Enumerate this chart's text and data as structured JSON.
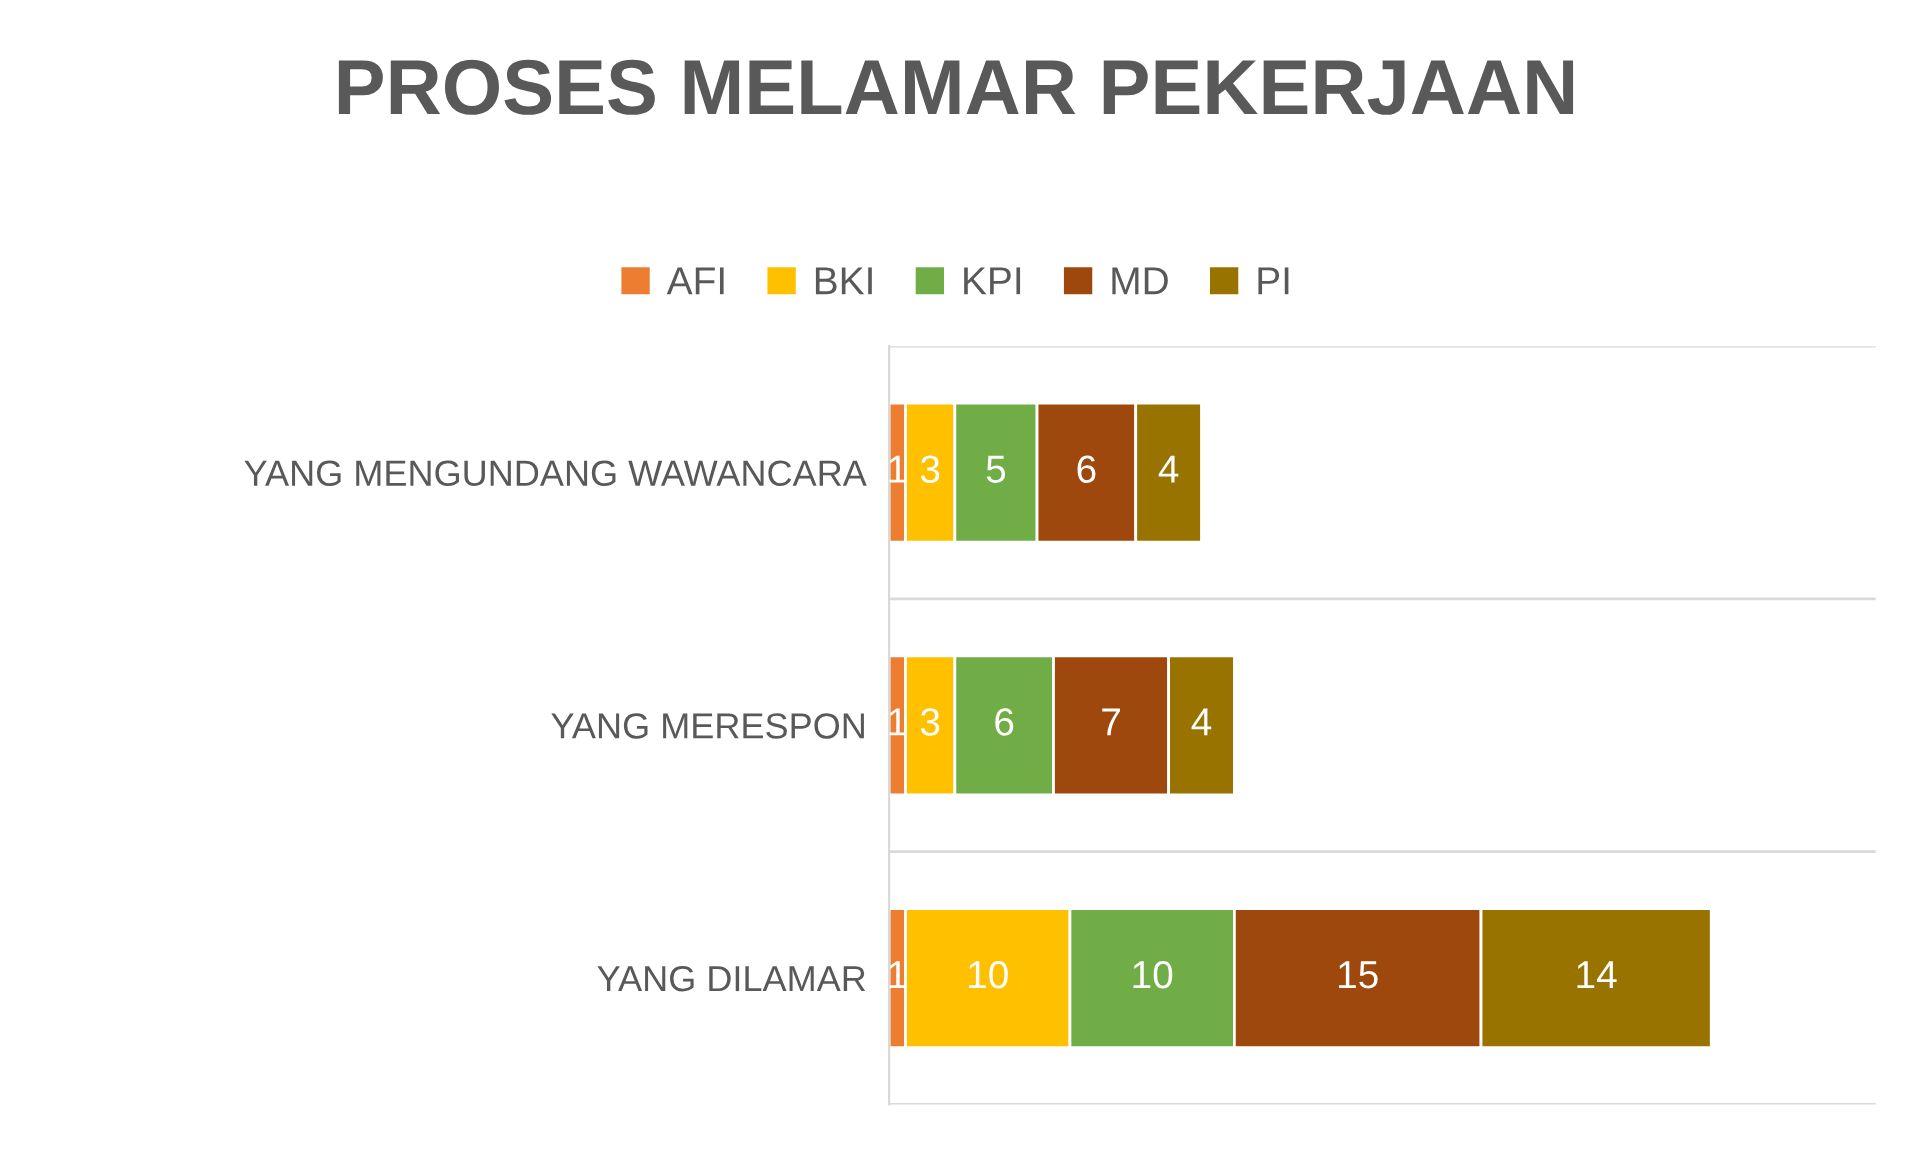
{
  "chart_data": {
    "type": "bar",
    "orientation": "horizontal",
    "stacked": true,
    "title": "PROSES MELAMAR PEKERJAAN",
    "categories": [
      "YANG MENGUNDANG WAWANCARA",
      "YANG MERESPON",
      "YANG DILAMAR"
    ],
    "series": [
      {
        "name": "AFI",
        "color": "#ed7d31",
        "values": [
          1,
          1,
          1
        ]
      },
      {
        "name": "BKI",
        "color": "#ffc000",
        "values": [
          3,
          3,
          10
        ]
      },
      {
        "name": "KPI",
        "color": "#70ad47",
        "values": [
          5,
          6,
          10
        ]
      },
      {
        "name": "MD",
        "color": "#9e480e",
        "values": [
          6,
          7,
          15
        ]
      },
      {
        "name": "PI",
        "color": "#997300",
        "values": [
          4,
          4,
          14
        ]
      }
    ],
    "xlim": [
      0,
      60
    ],
    "data_labels": true,
    "legend": "top",
    "grid": "y",
    "tick_labels": "y"
  }
}
